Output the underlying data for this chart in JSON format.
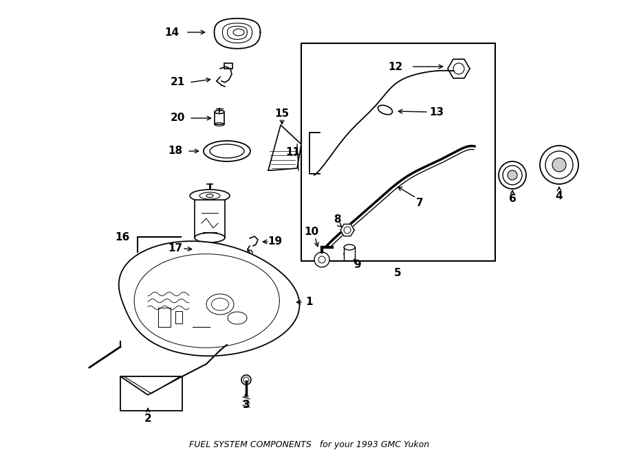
{
  "title": "FUEL SYSTEM COMPONENTS",
  "subtitle": "for your 1993 GMC Yukon",
  "bg_color": "#ffffff",
  "line_color": "#000000",
  "figsize": [
    9.0,
    6.61
  ],
  "dpi": 100
}
